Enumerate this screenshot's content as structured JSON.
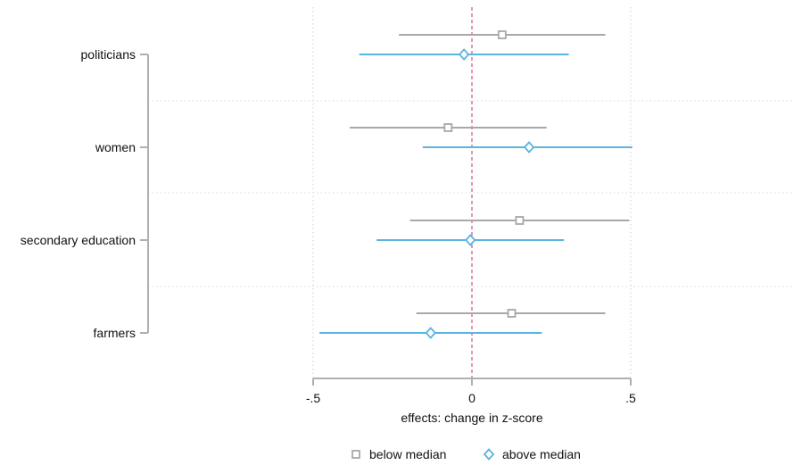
{
  "chart_data": {
    "type": "coefficient-plot",
    "title": "",
    "xlabel": "effects: change in z-score",
    "ylabel": "",
    "xlim": [
      -0.5,
      0.5
    ],
    "x_ticks": [
      {
        "value": -0.5,
        "label": "-.5"
      },
      {
        "value": 0,
        "label": "0"
      },
      {
        "value": 0.5,
        "label": ".5"
      }
    ],
    "reference_line": {
      "x": 0,
      "style": "dashed",
      "color": "#d6608f"
    },
    "grid": true,
    "legend_position": "bottom",
    "categories": [
      "politicians",
      "women",
      "secondary education",
      "farmers"
    ],
    "series": [
      {
        "name": "below median",
        "marker": "square",
        "color": "#a8a8a8",
        "points": [
          {
            "category": "politicians",
            "estimate": 0.095,
            "low": -0.23,
            "high": 0.42
          },
          {
            "category": "women",
            "estimate": -0.075,
            "low": -0.385,
            "high": 0.235
          },
          {
            "category": "secondary education",
            "estimate": 0.15,
            "low": -0.195,
            "high": 0.495
          },
          {
            "category": "farmers",
            "estimate": 0.125,
            "low": -0.175,
            "high": 0.42
          }
        ]
      },
      {
        "name": "above median",
        "marker": "diamond",
        "color": "#5ab4e0",
        "points": [
          {
            "category": "politicians",
            "estimate": -0.025,
            "low": -0.355,
            "high": 0.305
          },
          {
            "category": "women",
            "estimate": 0.18,
            "low": -0.155,
            "high": 0.505
          },
          {
            "category": "secondary education",
            "estimate": -0.005,
            "low": -0.3,
            "high": 0.29
          },
          {
            "category": "farmers",
            "estimate": -0.13,
            "low": -0.48,
            "high": 0.22
          }
        ]
      }
    ]
  }
}
